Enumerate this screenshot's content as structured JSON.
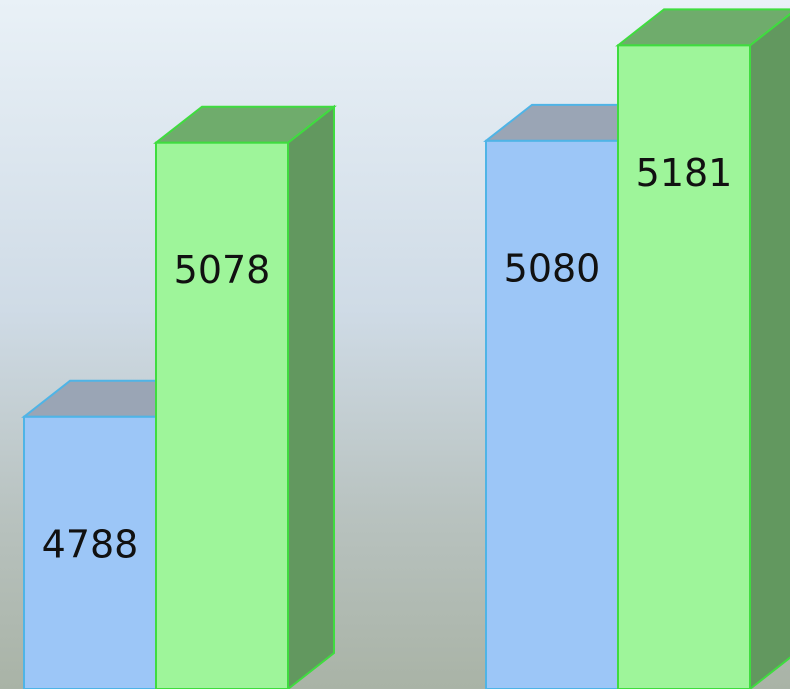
{
  "chart_data": {
    "type": "bar3d",
    "categories": [
      null,
      null
    ],
    "series": [
      {
        "color": "#9cc6f7",
        "values": [
          4788,
          5080
        ]
      },
      {
        "color": "#9ef59a",
        "values": [
          5078,
          5181
        ]
      }
    ],
    "ylim": [
      4500,
      5229
    ]
  }
}
